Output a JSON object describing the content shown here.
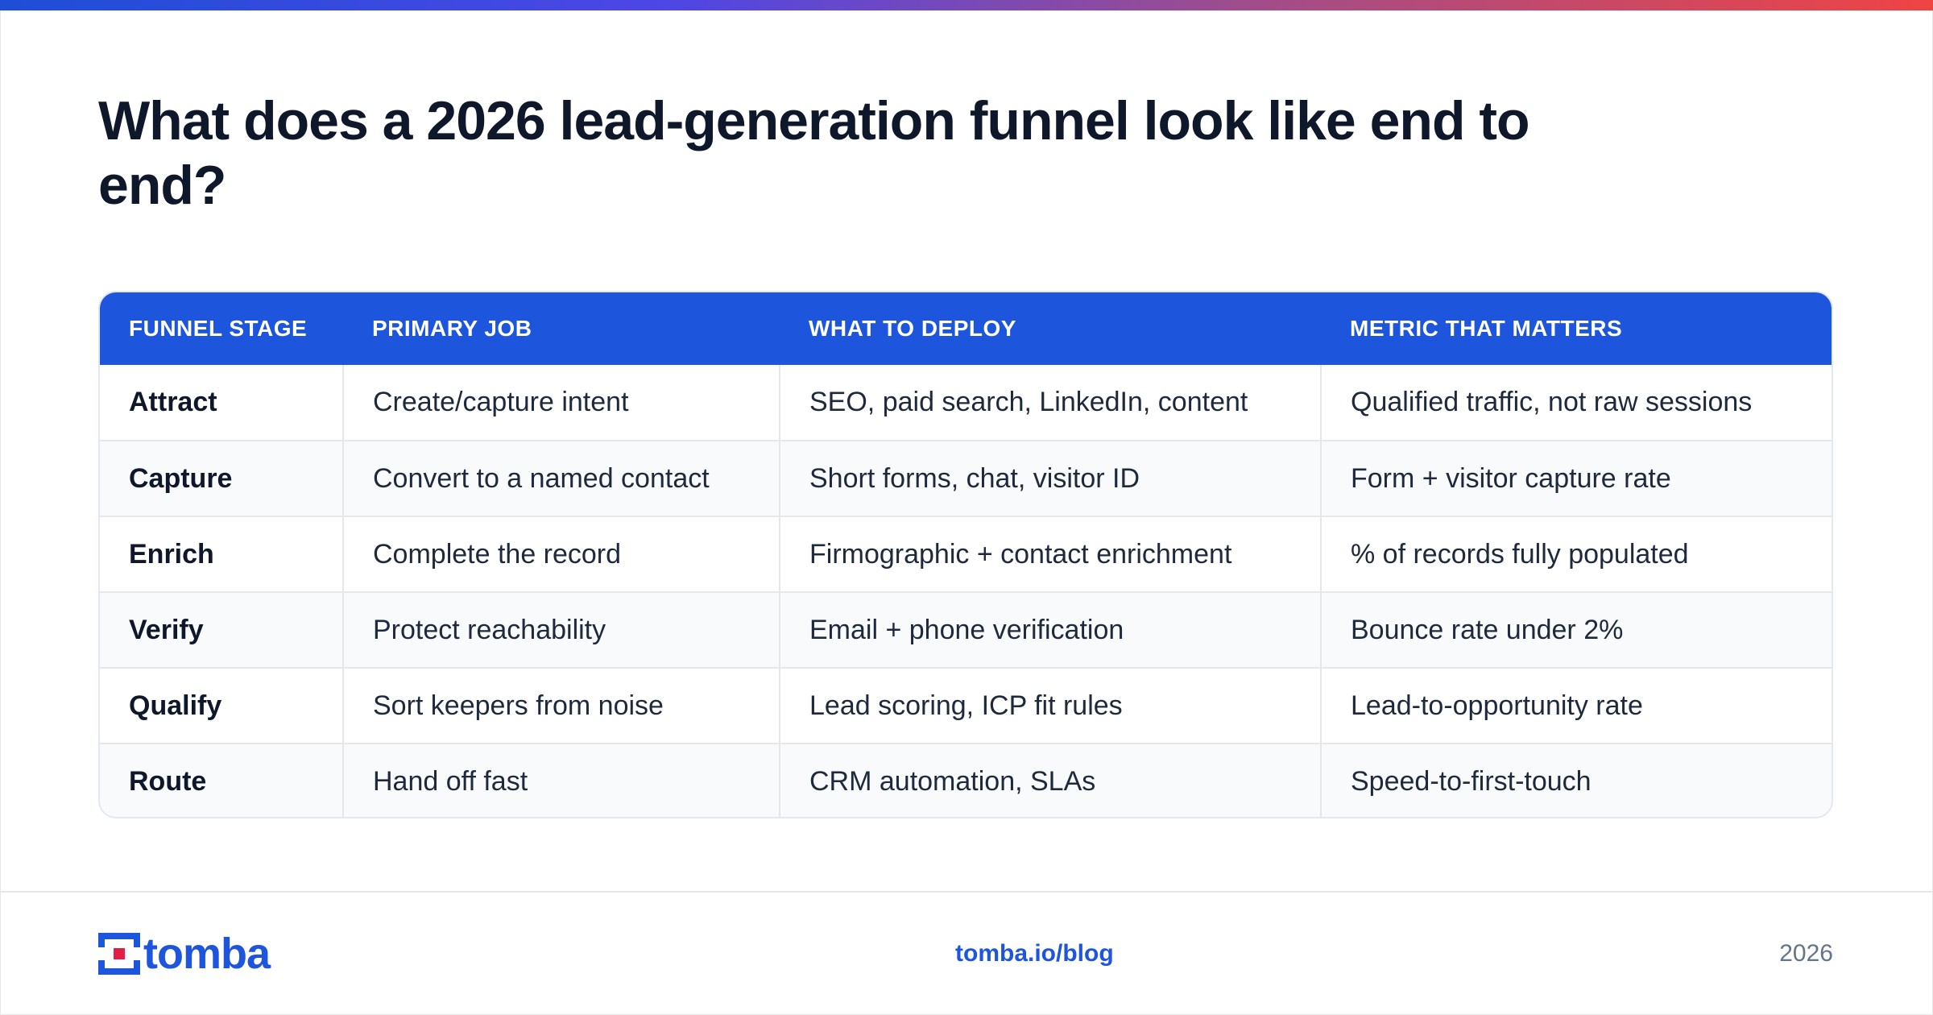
{
  "title": "What does a 2026 lead-generation funnel look like end to end?",
  "table": {
    "headers": [
      "FUNNEL STAGE",
      "PRIMARY JOB",
      "WHAT TO DEPLOY",
      "METRIC THAT MATTERS"
    ],
    "rows": [
      [
        "Attract",
        "Create/capture intent",
        "SEO, paid search, LinkedIn, content",
        "Qualified traffic, not raw sessions"
      ],
      [
        "Capture",
        "Convert to a named contact",
        "Short forms, chat, visitor ID",
        "Form + visitor capture rate"
      ],
      [
        "Enrich",
        "Complete the record",
        "Firmographic + contact enrichment",
        "% of records fully populated"
      ],
      [
        "Verify",
        "Protect reachability",
        "Email + phone verification",
        "Bounce rate under 2%"
      ],
      [
        "Qualify",
        "Sort keepers from noise",
        "Lead scoring, ICP fit rules",
        "Lead-to-opportunity rate"
      ],
      [
        "Route",
        "Hand off fast",
        "CRM automation, SLAs",
        "Speed-to-first-touch"
      ]
    ]
  },
  "footer": {
    "brand": "tomba",
    "link": "tomba.io/blog",
    "year": "2026"
  },
  "colors": {
    "brand_blue": "#1d55dd",
    "logo_red": "#e11d48",
    "accent_gradient": [
      "#1d4ed8",
      "#4f46e5",
      "#a14d8a",
      "#ef4444"
    ]
  },
  "icons": {
    "logo": "tomba-logo-icon"
  }
}
